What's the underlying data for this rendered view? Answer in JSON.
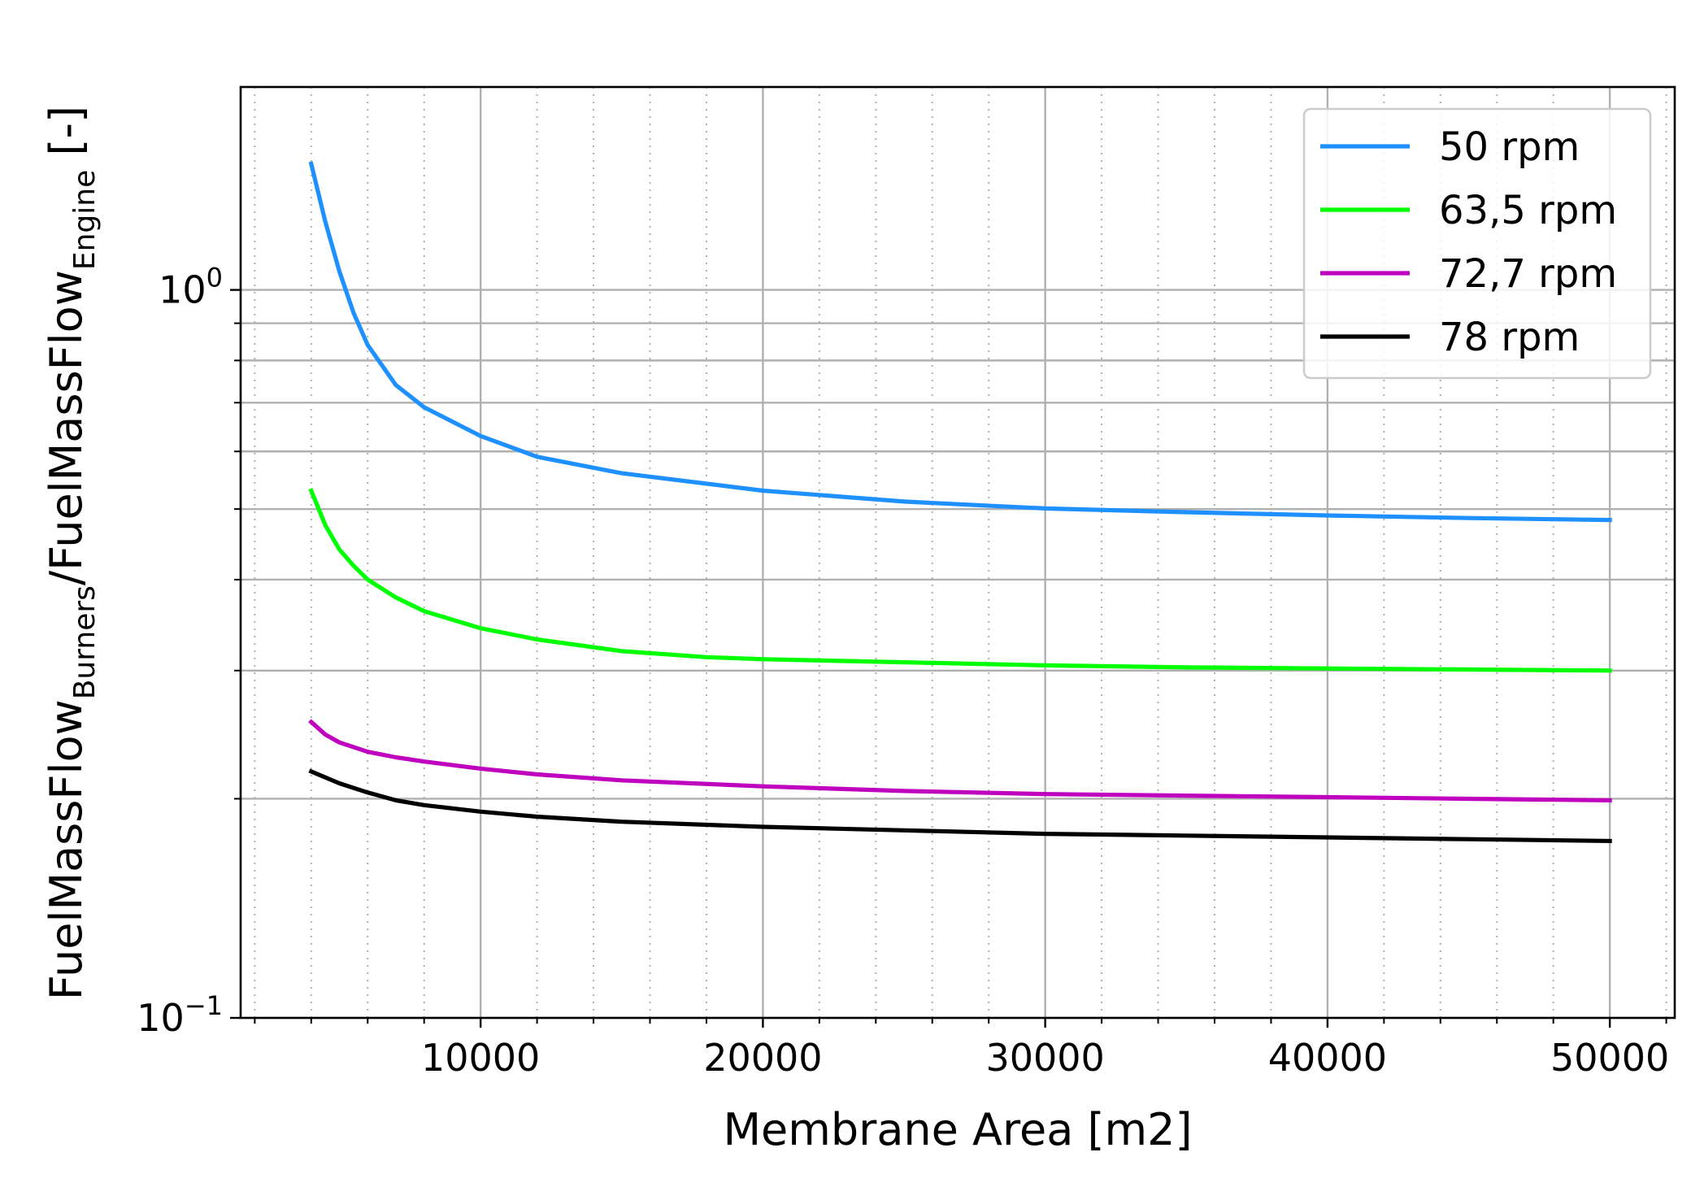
{
  "chart_data": {
    "type": "line",
    "xlabel": "Membrane Area [m2]",
    "ylabel": {
      "part1": "FuelMassFlow",
      "sub1": "Burners",
      "part2": "/FuelMassFlow",
      "sub2": "Engine",
      "unit": " [-]"
    },
    "xlim": [
      1500,
      52300
    ],
    "xticks": [
      10000,
      20000,
      30000,
      40000,
      50000
    ],
    "xtick_labels": [
      "10000",
      "20000",
      "30000",
      "40000",
      "50000"
    ],
    "yscale": "log",
    "ylim": [
      0.1,
      1.9
    ],
    "yticks": [
      {
        "base": "10",
        "exp": "0",
        "value": 1.0
      },
      {
        "base": "10",
        "exp": "−1",
        "value": 0.1
      }
    ],
    "grid": true,
    "minor_grid": true,
    "legend_position": "top-right",
    "series": [
      {
        "name": "50 rpm",
        "color": "#1e90ff",
        "x": [
          4000,
          4500,
          5000,
          5500,
          6000,
          7000,
          8000,
          10000,
          12000,
          15000,
          20000,
          25000,
          30000,
          35000,
          40000,
          45000,
          50000
        ],
        "y": [
          1.49,
          1.24,
          1.06,
          0.93,
          0.84,
          0.74,
          0.69,
          0.63,
          0.59,
          0.56,
          0.53,
          0.512,
          0.501,
          0.495,
          0.49,
          0.486,
          0.483
        ]
      },
      {
        "name": "63,5 rpm",
        "color": "#00ff00",
        "x": [
          4000,
          4500,
          5000,
          5500,
          6000,
          7000,
          8000,
          10000,
          12000,
          15000,
          18000,
          20000,
          25000,
          30000,
          35000,
          40000,
          45000,
          50000
        ],
        "y": [
          0.53,
          0.475,
          0.44,
          0.418,
          0.4,
          0.378,
          0.362,
          0.343,
          0.331,
          0.319,
          0.313,
          0.311,
          0.308,
          0.305,
          0.303,
          0.302,
          0.301,
          0.3
        ]
      },
      {
        "name": "72,7 rpm",
        "color": "#bf00bf",
        "x": [
          4000,
          4500,
          5000,
          6000,
          7000,
          8000,
          10000,
          12000,
          15000,
          20000,
          25000,
          30000,
          35000,
          40000,
          45000,
          50000
        ],
        "y": [
          0.255,
          0.245,
          0.239,
          0.232,
          0.228,
          0.225,
          0.22,
          0.216,
          0.212,
          0.208,
          0.205,
          0.203,
          0.202,
          0.201,
          0.2,
          0.199
        ]
      },
      {
        "name": "78 rpm",
        "color": "#000000",
        "x": [
          4000,
          5000,
          6000,
          7000,
          8000,
          10000,
          12000,
          15000,
          20000,
          25000,
          30000,
          35000,
          40000,
          45000,
          50000
        ],
        "y": [
          0.218,
          0.21,
          0.204,
          0.199,
          0.196,
          0.192,
          0.189,
          0.186,
          0.183,
          0.181,
          0.179,
          0.178,
          0.177,
          0.176,
          0.175
        ]
      }
    ]
  }
}
